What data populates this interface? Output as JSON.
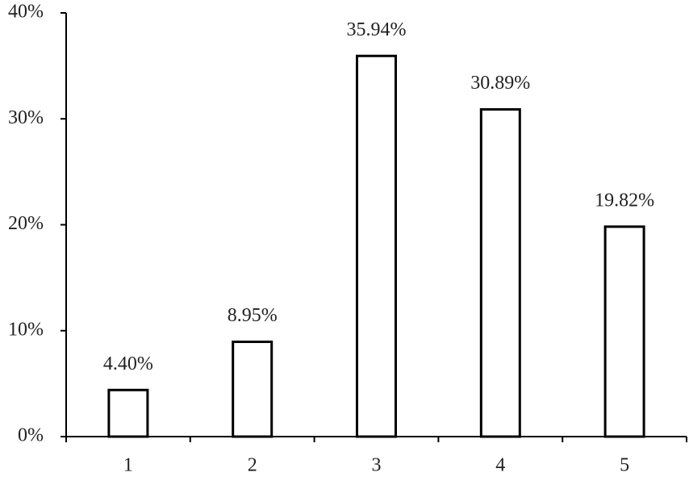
{
  "chart_data": {
    "type": "bar",
    "categories": [
      "1",
      "2",
      "3",
      "4",
      "5"
    ],
    "values": [
      4.4,
      8.95,
      35.94,
      30.89,
      19.82
    ],
    "value_labels": [
      "4.40%",
      "8.95%",
      "35.94%",
      "30.89%",
      "19.82%"
    ],
    "color": "#ffffff",
    "ylim": [
      0,
      40
    ],
    "yticks": [
      {
        "value": 0,
        "label": "0%"
      },
      {
        "value": 10,
        "label": "10%"
      },
      {
        "value": 20,
        "label": "20%"
      },
      {
        "value": 30,
        "label": "30%"
      },
      {
        "value": 40,
        "label": "40%"
      }
    ],
    "grid": false
  }
}
